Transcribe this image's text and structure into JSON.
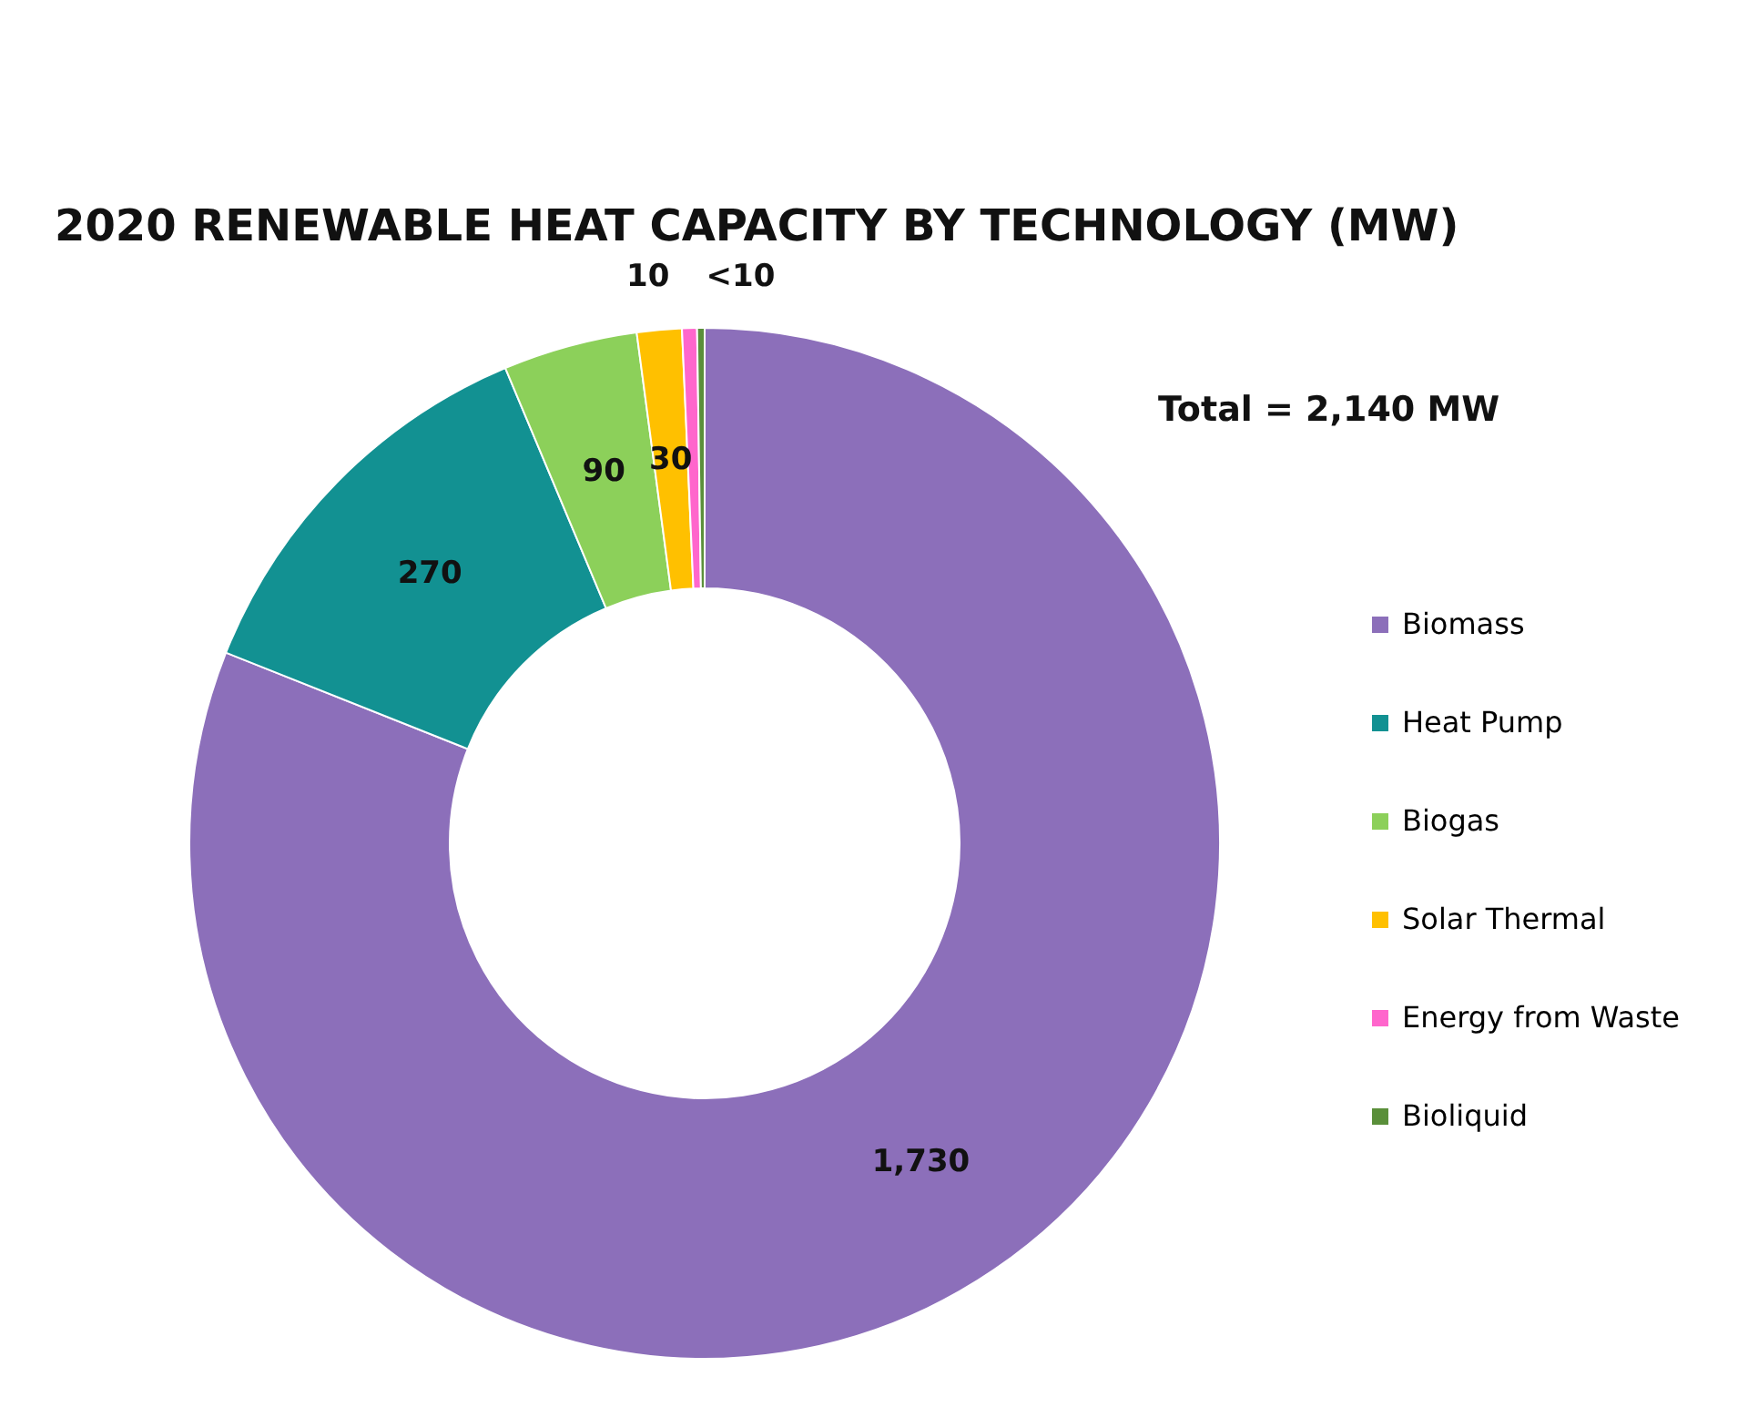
{
  "chart_data": {
    "type": "donut",
    "title": "2020 RENEWABLE HEAT CAPACITY BY TECHNOLOGY (MW)",
    "categories": [
      "Biomass",
      "Heat Pump",
      "Biogas",
      "Solar Thermal",
      "Energy from Waste",
      "Bioliquid"
    ],
    "values": [
      1730,
      270,
      90,
      30,
      10,
      5
    ],
    "value_labels": [
      "1,730",
      "270",
      "90",
      "30",
      "10",
      "<10"
    ],
    "colors": [
      "#8c6fba",
      "#129192",
      "#8cd05a",
      "#ffc000",
      "#ff66cc",
      "#5a8f3a"
    ],
    "annotations": [
      "Total = 2,140 MW"
    ],
    "legend": "right"
  }
}
